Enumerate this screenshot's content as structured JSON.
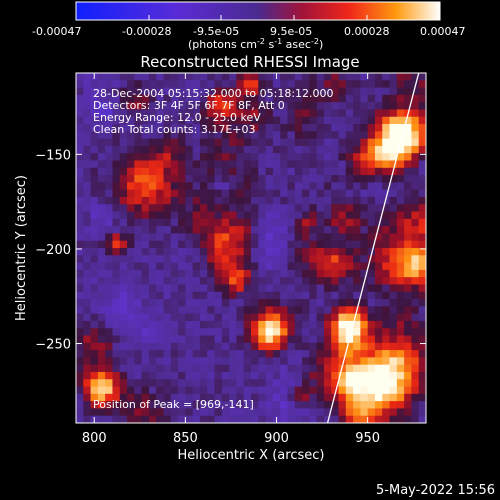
{
  "colorbar": {
    "ticks": [
      "-0.00047",
      "-0.00028",
      "-9.5e-05",
      "9.5e-05",
      "0.00028",
      "0.00047"
    ],
    "units_label": "(photons cm",
    "units_exp1": "-2",
    "units_s": " s",
    "units_exp2": "-1",
    "units_asec": " asec",
    "units_exp3": "-2",
    "units_close": ")"
  },
  "chart_data": {
    "type": "heatmap",
    "title": "Reconstructed RHESSI Image",
    "xlabel": "Heliocentric X (arcsec)",
    "ylabel": "Heliocentric Y (arcsec)",
    "xlim": [
      790,
      982
    ],
    "ylim": [
      -292,
      -107
    ],
    "x_ticks": [
      800,
      850,
      900,
      950
    ],
    "y_ticks": [
      -150,
      -200,
      -250
    ],
    "x_tick_labels": [
      "800",
      "850",
      "900",
      "950"
    ],
    "y_tick_labels": [
      "−150",
      "−200",
      "−250"
    ],
    "clim": [
      -0.00047,
      0.00047
    ],
    "limb_line": [
      [
        928,
        -292
      ],
      [
        978,
        -107
      ]
    ],
    "peak": [
      969,
      -141
    ],
    "info_lines": [
      "28-Dec-2004 05:15:32.000 to 05:18:12.000",
      "Detectors: 3F 4F 5F 6F 7F 8F, Att 0",
      "Energy Range: 12.0 - 25.0 keV",
      "Clean    Total counts: 3.17E+03"
    ],
    "peak_label": "Position of Peak = [969,-141]"
  },
  "footer": {
    "date": "5-May-2022 15:56"
  }
}
